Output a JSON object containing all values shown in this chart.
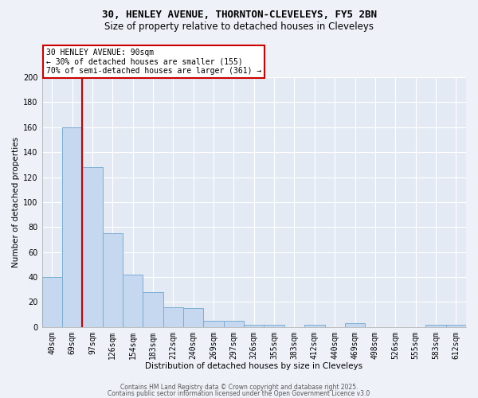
{
  "title1": "30, HENLEY AVENUE, THORNTON-CLEVELEYS, FY5 2BN",
  "title2": "Size of property relative to detached houses in Cleveleys",
  "xlabel": "Distribution of detached houses by size in Cleveleys",
  "ylabel": "Number of detached properties",
  "categories": [
    "40sqm",
    "69sqm",
    "97sqm",
    "126sqm",
    "154sqm",
    "183sqm",
    "212sqm",
    "240sqm",
    "269sqm",
    "297sqm",
    "326sqm",
    "355sqm",
    "383sqm",
    "412sqm",
    "440sqm",
    "469sqm",
    "498sqm",
    "526sqm",
    "555sqm",
    "583sqm",
    "612sqm"
  ],
  "values": [
    40,
    160,
    128,
    75,
    42,
    28,
    16,
    15,
    5,
    5,
    2,
    2,
    0,
    2,
    0,
    3,
    0,
    0,
    0,
    2,
    2
  ],
  "bar_color": "#c5d8ef",
  "bar_edge_color": "#7badd4",
  "vline_color": "#cc0000",
  "annotation_line1": "30 HENLEY AVENUE: 90sqm",
  "annotation_line2": "← 30% of detached houses are smaller (155)",
  "annotation_line3": "70% of semi-detached houses are larger (361) →",
  "annotation_box_color": "#cc0000",
  "ylim": [
    0,
    200
  ],
  "yticks": [
    0,
    20,
    40,
    60,
    80,
    100,
    120,
    140,
    160,
    180,
    200
  ],
  "footer1": "Contains HM Land Registry data © Crown copyright and database right 2025.",
  "footer2": "Contains public sector information licensed under the Open Government Licence v3.0",
  "bg_color": "#eef2f8",
  "plot_bg_color": "#e4eaf4",
  "grid_color": "#ffffff",
  "title_fontsize": 9,
  "subtitle_fontsize": 8.5,
  "tick_fontsize": 7,
  "axis_label_fontsize": 7.5
}
